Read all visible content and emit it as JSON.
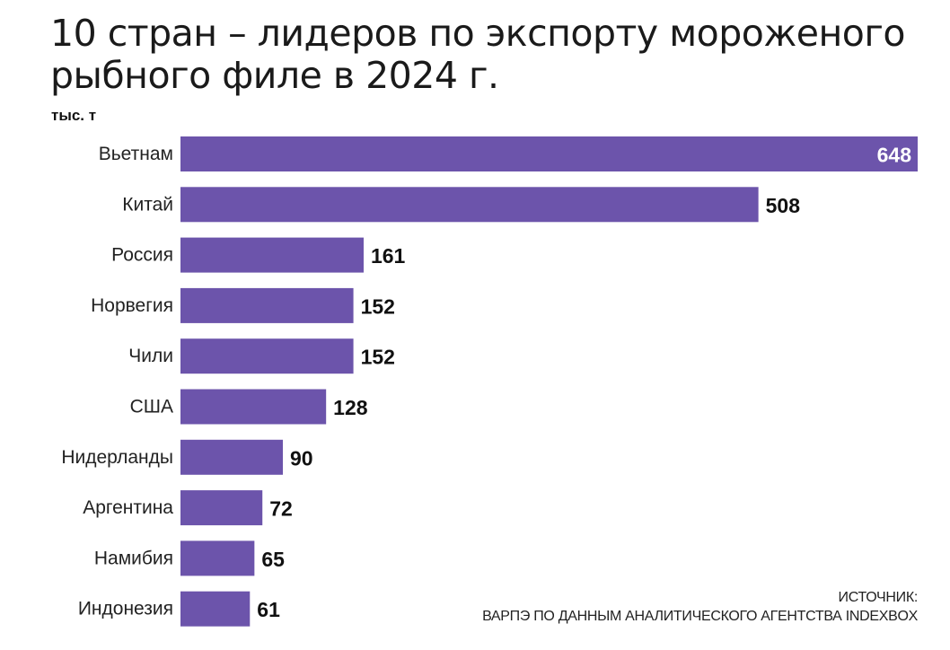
{
  "title": {
    "line1": "10 стран – лидеров по экспорту мороженого",
    "line2": "рыбного филе в 2024 г."
  },
  "unit_label": "тыс. т",
  "source": {
    "line1": "ИСТОЧНИК:",
    "line2": "ВАРПЭ ПО ДАННЫМ АНАЛИТИЧЕСКОГО АГЕНТСТВА INDEXBOX"
  },
  "colors": {
    "bar": "#6c54ab",
    "value_inside": "#ffffff",
    "value_outside": "#111111",
    "category_text": "#222222"
  },
  "chart_data": {
    "type": "bar",
    "orientation": "horizontal",
    "title": "10 стран – лидеров по экспорту мороженого рыбного филе в 2024 г.",
    "ylabel": "тыс. т",
    "categories": [
      "Вьетнам",
      "Китай",
      "Россия",
      "Норвегия",
      "Чили",
      "США",
      "Нидерланды",
      "Аргентина",
      "Намибия",
      "Индонезия"
    ],
    "values": [
      648,
      508,
      161,
      152,
      152,
      128,
      90,
      72,
      65,
      61
    ],
    "data_labels": [
      "648",
      "508",
      "161",
      "152",
      "152",
      "128",
      "90",
      "72",
      "65",
      "61"
    ],
    "xlim": [
      0,
      648
    ],
    "grid": false,
    "legend": "none"
  }
}
